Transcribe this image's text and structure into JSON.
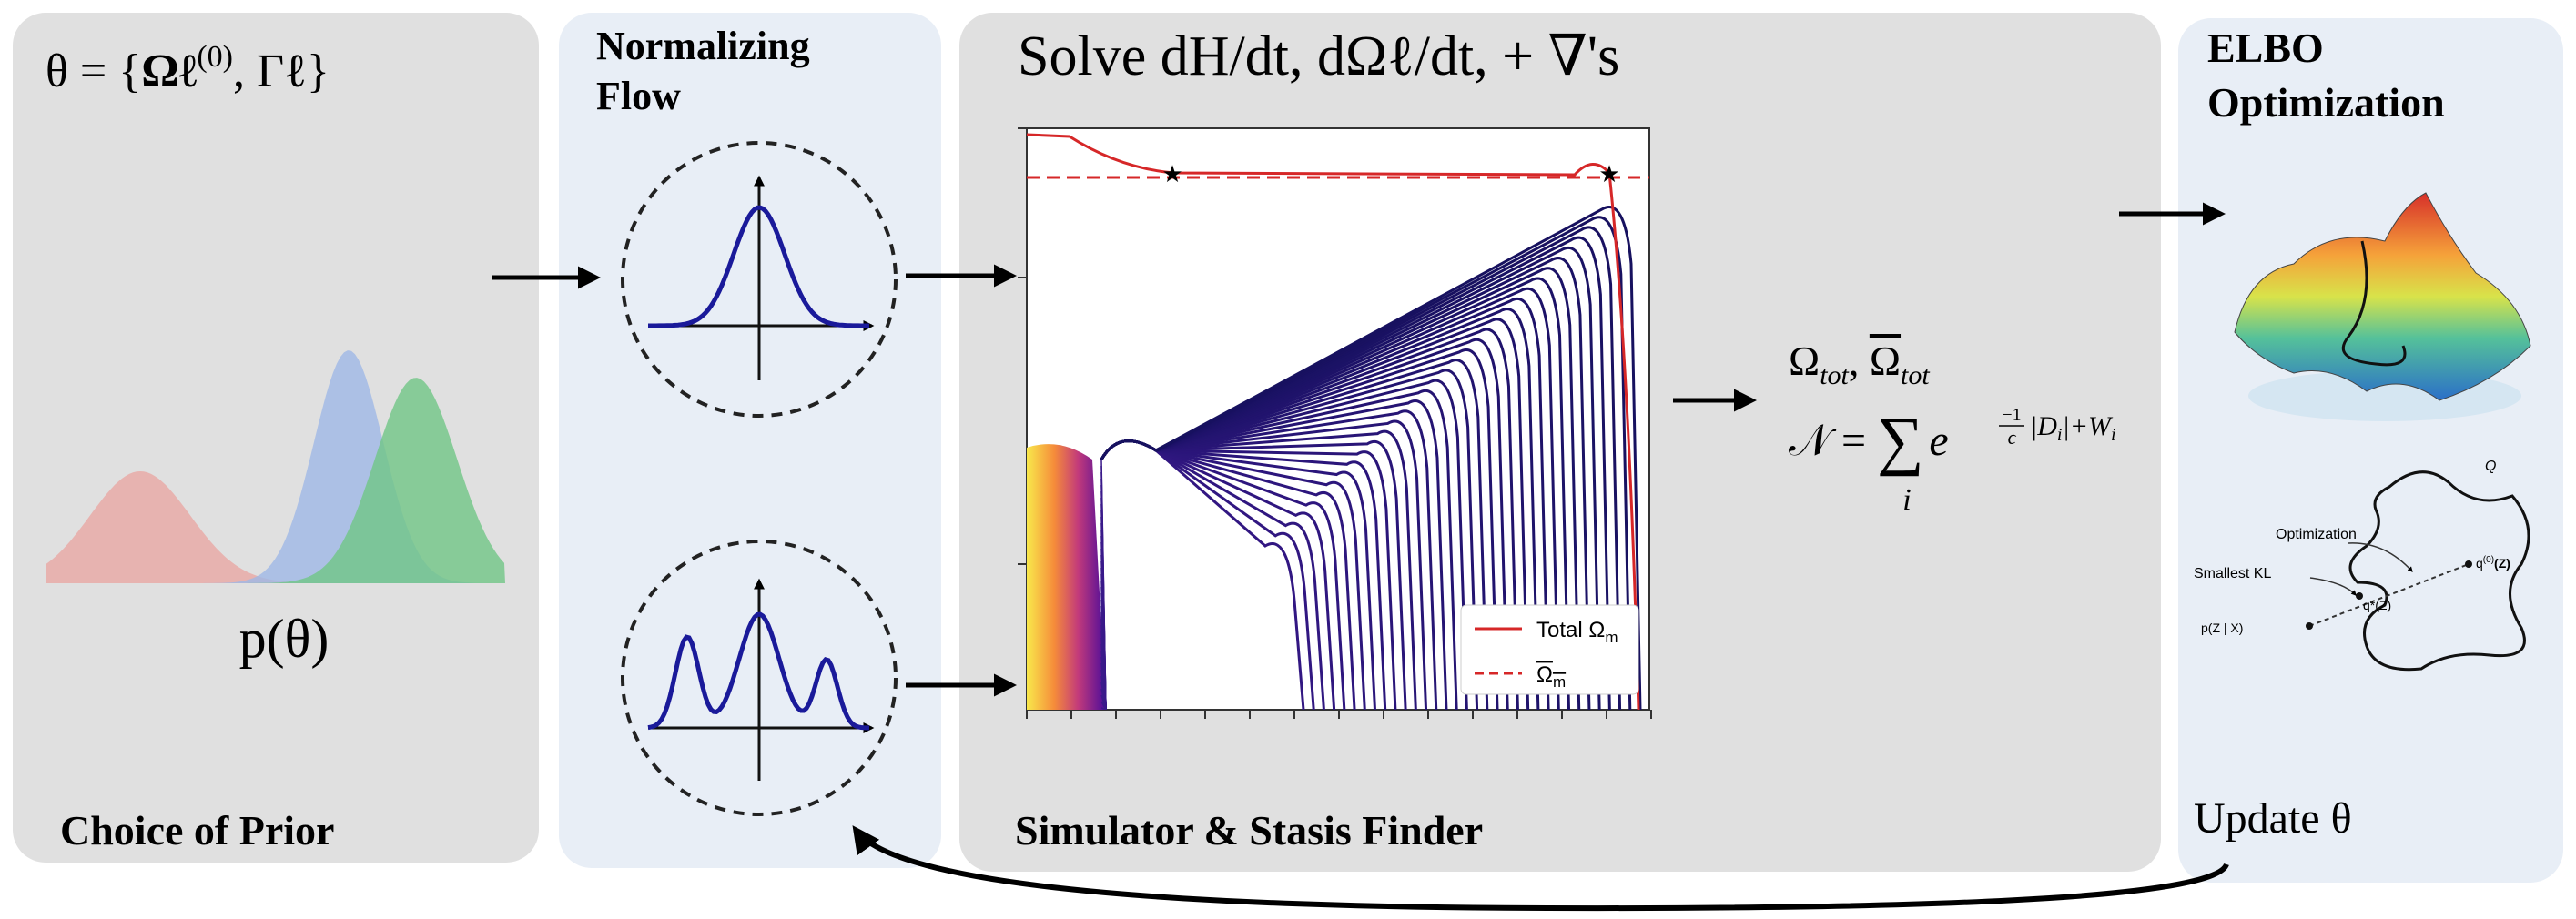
{
  "prior": {
    "formula_parts": [
      "θ = {",
      "Ωℓ",
      "(0)",
      ", Γℓ}"
    ],
    "distribution_label": "p(θ)",
    "caption": "Choice of Prior"
  },
  "flow": {
    "title_lines": [
      "Normalizing",
      "Flow"
    ]
  },
  "simulator": {
    "title": "Solve dH/dt, dΩℓ/dt, + ∇'s",
    "legend": [
      {
        "text": "Total Ω",
        "sub": "m"
      },
      {
        "text": "Ω",
        "sub": "m"
      }
    ],
    "caption": "Simulator & Stasis Finder"
  },
  "outputs": {
    "line1": {
      "a": "Ω",
      "a_sub": "tot",
      "sep": ", ",
      "b": "Ω",
      "b_sub": "tot"
    },
    "line2": {
      "lhs": "𝒩 = ",
      "sum": "∑",
      "index": "i",
      "base": "e",
      "exp_frac_num": "−1",
      "exp_frac_den": "ϵ",
      "exp_rest": "|D",
      "exp_rest_sub": "i",
      "exp_tail": "|+W",
      "exp_tail_sub": "i"
    }
  },
  "elbo": {
    "title_lines": [
      "ELBO",
      "Optimization"
    ],
    "diagram": {
      "q_label": "Q",
      "optimization": "Optimization",
      "smallest_kl": "Smallest KL",
      "q0": "q",
      "q0_sup": "(0)",
      "q0_arg": "(Z)",
      "qstar": "q*(Z)",
      "posterior": "p(Z | X)"
    },
    "update": "Update θ"
  }
}
